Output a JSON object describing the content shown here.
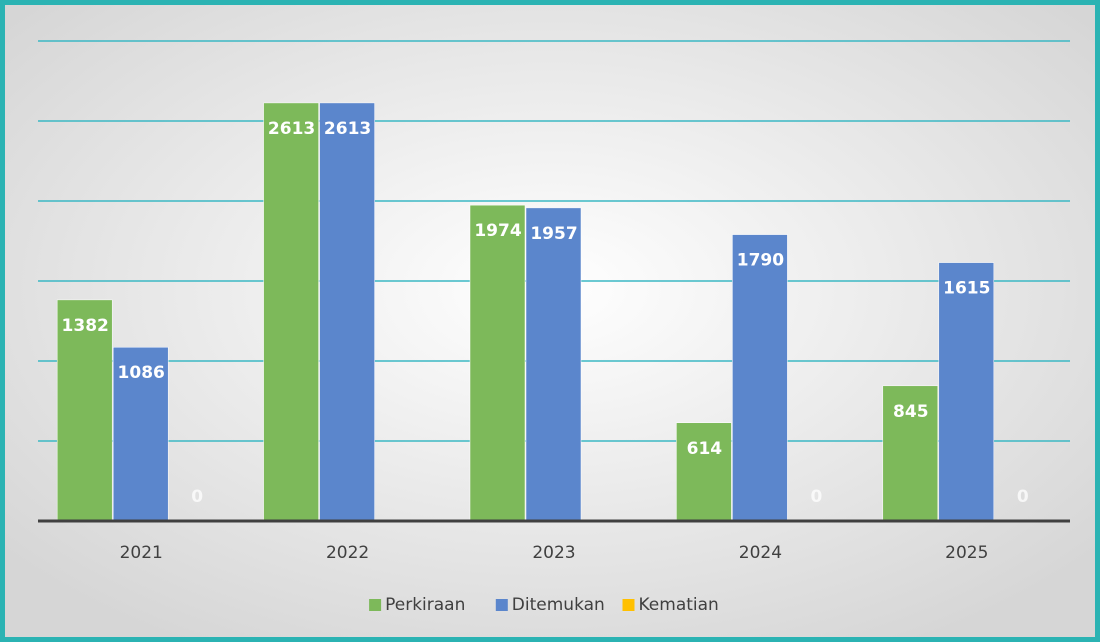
{
  "chart_data": {
    "type": "bar",
    "categories": [
      "2021",
      "2022",
      "2023",
      "2024",
      "2025"
    ],
    "series": [
      {
        "name": "Perkiraan",
        "color": "#7db95a",
        "values": [
          1382,
          2613,
          1974,
          614,
          845
        ]
      },
      {
        "name": "Ditemukan",
        "color": "#5b86cc",
        "values": [
          1086,
          2613,
          1957,
          1790,
          1615
        ]
      },
      {
        "name": "Kematian",
        "color": "#ffc000",
        "values": [
          0,
          null,
          null,
          0,
          0
        ]
      }
    ],
    "ylim": [
      0,
      3000
    ],
    "yticks": [
      500,
      1000,
      1500,
      2000,
      2500,
      3000
    ],
    "grid": true,
    "legend": "bottom"
  }
}
